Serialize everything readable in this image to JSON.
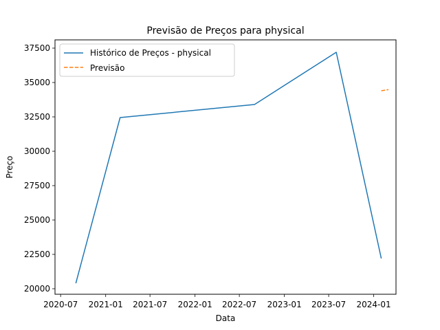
{
  "chart_data": {
    "type": "line",
    "title": "Previsão de Preços para physical",
    "xlabel": "Data",
    "ylabel": "Preço",
    "x_axis_type": "date",
    "xlim": [
      "2020-06-08",
      "2024-04-01"
    ],
    "ylim": [
      19600,
      38100
    ],
    "x_ticks": [
      "2020-07-01",
      "2021-01-01",
      "2021-07-01",
      "2022-01-01",
      "2022-07-01",
      "2023-01-01",
      "2023-07-01",
      "2024-01-01"
    ],
    "x_tick_labels": [
      "2020-07",
      "2021-01",
      "2021-07",
      "2022-01",
      "2022-07",
      "2023-01",
      "2023-07",
      "2024-01"
    ],
    "y_ticks": [
      20000,
      22500,
      25000,
      27500,
      30000,
      32500,
      35000,
      37500
    ],
    "y_tick_labels": [
      "20000",
      "22500",
      "25000",
      "27500",
      "30000",
      "32500",
      "35000",
      "37500"
    ],
    "grid": false,
    "legend_position": "top-left",
    "series": [
      {
        "name": "Histórico de Preços - physical",
        "color": "#1f77b4",
        "style": "solid",
        "x": [
          "2020-09-01",
          "2021-03-01",
          "2022-09-01",
          "2023-08-01",
          "2024-02-01"
        ],
        "y": [
          20400,
          32450,
          33400,
          37200,
          22200
        ]
      },
      {
        "name": "Previsão",
        "color": "#ff7f0e",
        "style": "dashed",
        "x": [
          "2024-02-01",
          "2024-03-01"
        ],
        "y": [
          34400,
          34480
        ]
      }
    ]
  }
}
